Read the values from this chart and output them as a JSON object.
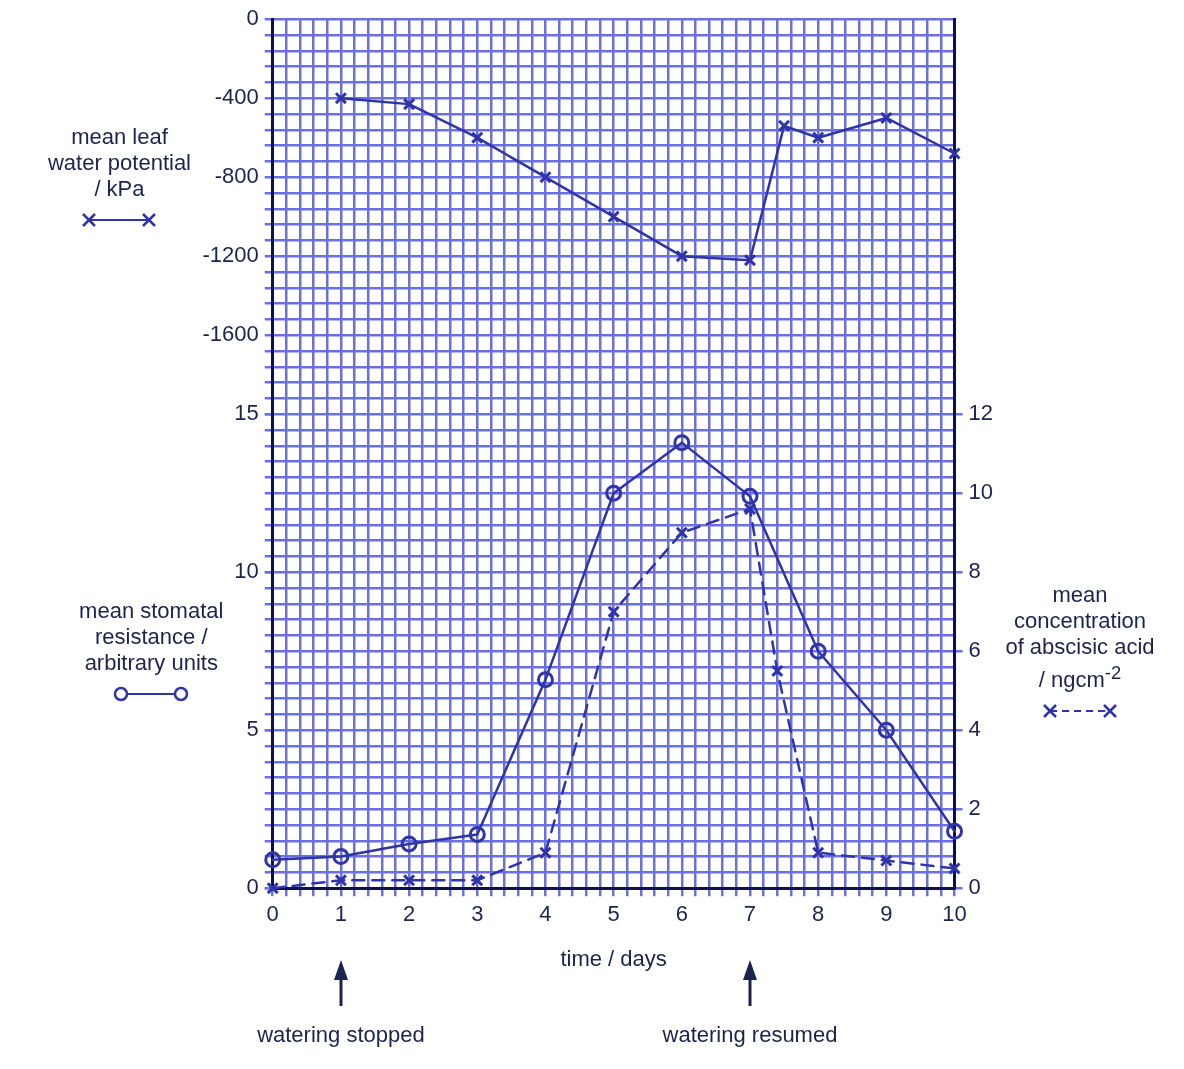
{
  "chart_data": {
    "type": "line",
    "xlabel": "time / days",
    "ylabel": "mean leaf water potential / kPa",
    "y2label": "mean concentration of abscisic acid / ngcm$^{-2}$",
    "y3label": "mean stomatal resistance / arbitrary units",
    "xlim": [
      0,
      10
    ],
    "xticks": [
      0,
      {
        "value": 0.2,
        "label": null
      },
      {
        "value": 0.4,
        "label": null
      },
      {
        "value": 0.6,
        "label": null
      },
      {
        "value": 0.8,
        "label": null
      },
      1,
      {
        "value": 1.2,
        "label": null
      },
      {
        "value": 1.4,
        "label": null
      },
      {
        "value": 1.6,
        "label": null
      },
      {
        "value": 1.8,
        "label": null
      },
      2,
      {
        "value": 2.2,
        "label": null
      },
      {
        "value": 2.4,
        "label": null
      },
      {
        "value": 2.6,
        "label": null
      },
      {
        "value": 2.8,
        "label": null
      },
      3,
      {
        "value": 3.2,
        "label": null
      },
      {
        "value": 3.4,
        "label": null
      },
      {
        "value": 3.6,
        "label": null
      },
      {
        "value": 3.8,
        "label": null
      },
      4,
      {
        "value": 4.2,
        "label": null
      },
      {
        "value": 4.4,
        "label": null
      },
      {
        "value": 4.6,
        "label": null
      },
      {
        "value": 4.8,
        "label": null
      },
      5,
      {
        "value": 5.2,
        "label": null
      },
      {
        "value": 5.4,
        "label": null
      },
      {
        "value": 5.6,
        "label": null
      },
      {
        "value": 5.8,
        "label": null
      },
      6,
      {
        "value": 6.2,
        "label": null
      },
      {
        "value": 6.4,
        "label": null
      },
      {
        "value": 6.6,
        "label": null
      },
      {
        "value": 6.8,
        "label": null
      },
      7,
      {
        "value": 7.2,
        "label": null
      },
      {
        "value": 7.4,
        "label": null
      },
      {
        "value": 7.6,
        "label": null
      },
      {
        "value": 7.8,
        "label": null
      },
      8,
      {
        "value": 8.2,
        "label": null
      },
      {
        "value": 8.4,
        "label": null
      },
      {
        "value": 8.6,
        "label": null
      },
      {
        "value": 8.8,
        "label": null
      },
      9,
      {
        "value": 9.2,
        "label": null
      },
      {
        "value": 9.4,
        "label": null
      },
      {
        "value": 9.6,
        "label": null
      },
      {
        "value": 9.8,
        "label": null
      },
      10
    ],
    "ylim": [
      -4400,
      0
    ],
    "yticks": [
      0,
      {
        "value": -80,
        "label": null
      },
      {
        "value": -160,
        "label": null
      },
      {
        "value": -240,
        "label": null
      },
      {
        "value": -320,
        "label": null
      },
      -400,
      {
        "value": -480,
        "label": null
      },
      {
        "value": -560,
        "label": null
      },
      {
        "value": -640,
        "label": null
      },
      {
        "value": -720,
        "label": null
      },
      -800,
      {
        "value": -880,
        "label": null
      },
      {
        "value": -960,
        "label": null
      },
      {
        "value": -1040,
        "label": null
      },
      {
        "value": -1120,
        "label": null
      },
      -1200,
      {
        "value": -1280,
        "label": null
      },
      {
        "value": -1360,
        "label": null
      },
      {
        "value": -1440,
        "label": null
      },
      {
        "value": -1520,
        "label": null
      },
      -1600,
      {
        "value": -1680,
        "label": null
      },
      {
        "value": -1760,
        "label": null
      },
      {
        "value": -1840,
        "label": null
      },
      {
        "value": -1920,
        "label": null
      },
      {
        "value": -2000,
        "label": null
      },
      {
        "value": -2080,
        "label": null
      },
      {
        "value": -2160,
        "label": null
      },
      {
        "value": -2240,
        "label": null
      },
      {
        "value": -2320,
        "label": null
      },
      {
        "value": -2400,
        "label": null
      },
      {
        "value": -2480,
        "label": null
      },
      {
        "value": -2560,
        "label": null
      },
      {
        "value": -2640,
        "label": null
      },
      {
        "value": -2720,
        "label": null
      },
      {
        "value": -2800,
        "label": null
      },
      {
        "value": -2880,
        "label": null
      },
      {
        "value": -2960,
        "label": null
      },
      {
        "value": -3040,
        "label": null
      },
      {
        "value": -3120,
        "label": null
      },
      {
        "value": -3200,
        "label": null
      },
      {
        "value": -3280,
        "label": null
      },
      {
        "value": -3360,
        "label": null
      },
      {
        "value": -3440,
        "label": null
      },
      {
        "value": -3520,
        "label": null
      },
      {
        "value": -3600,
        "label": null
      },
      {
        "value": -3680,
        "label": null
      },
      {
        "value": -3760,
        "label": null
      },
      {
        "value": -3840,
        "label": null
      },
      {
        "value": -3920,
        "label": null
      },
      {
        "value": -4000,
        "label": null
      },
      {
        "value": -4080,
        "label": null
      },
      {
        "value": -4160,
        "label": null
      },
      {
        "value": -4240,
        "label": null
      },
      {
        "value": -4320,
        "label": null
      },
      {
        "value": -4400,
        "label": null
      }
    ],
    "y2lim": [
      0,
      22
    ],
    "y2ticks": [
      0,
      2,
      4,
      6,
      8,
      10,
      12
    ],
    "y3lim": [
      0,
      27.5
    ],
    "y3ticks": [
      0,
      5,
      10,
      15
    ],
    "grid": true,
    "series": [
      {
        "color": "#2f34a8",
        "axis": "y",
        "marker": "cross",
        "line_style": "solid",
        "x": [
          1,
          2,
          3,
          4,
          5,
          6,
          7,
          7.5,
          8,
          9,
          10
        ],
        "values": [
          -400,
          -430,
          -600,
          -800,
          -1000,
          -1200,
          -1220,
          -540,
          -600,
          -500,
          -680
        ]
      },
      {
        "color": "#2f34a8",
        "axis": "y3",
        "marker": "circle",
        "line_style": "solid",
        "x": [
          0,
          1,
          2,
          3,
          4,
          5,
          6,
          7,
          8,
          9,
          10
        ],
        "values": [
          0.9,
          1.0,
          1.4,
          1.7,
          6.6,
          12.5,
          14.1,
          12.4,
          7.5,
          5.0,
          1.8
        ]
      },
      {
        "color": "#2f34a8",
        "axis": "y2",
        "marker": "cross",
        "line_style": "dashed",
        "x": [
          0,
          1,
          2,
          3,
          4,
          5,
          6,
          7,
          7.4,
          8,
          9,
          10
        ],
        "values": [
          0,
          0.2,
          0.2,
          0.2,
          0.9,
          7.0,
          9.0,
          9.6,
          5.5,
          0.9,
          0.7,
          0.5
        ]
      }
    ],
    "annotations": [
      "watering stopped",
      "watering resumed"
    ]
  }
}
